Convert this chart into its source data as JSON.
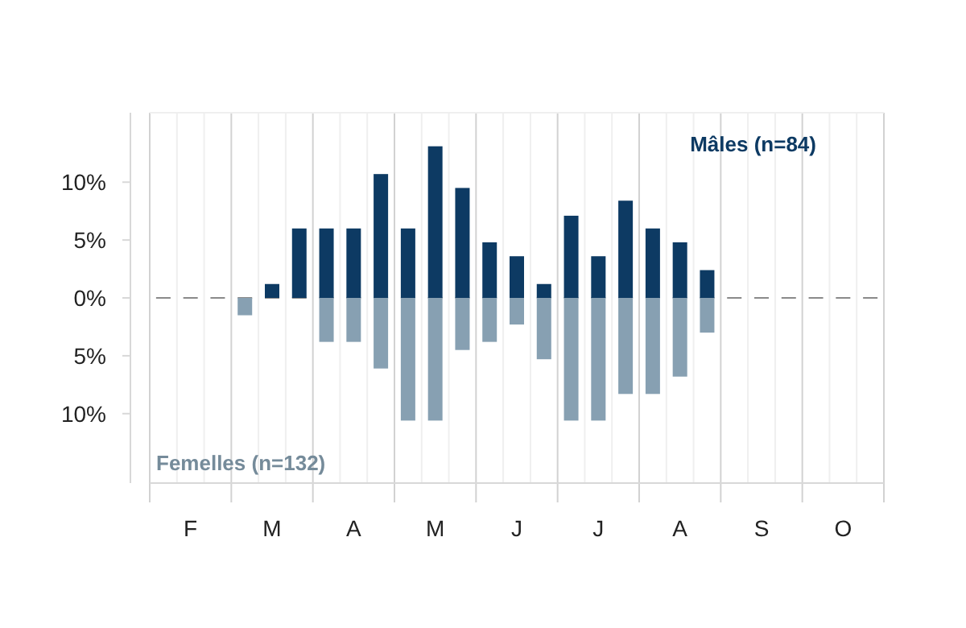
{
  "chart_data": {
    "type": "bar",
    "categories": [
      null,
      "F",
      null,
      null,
      "M",
      null,
      null,
      "A",
      null,
      null,
      "M",
      null,
      null,
      "J",
      null,
      null,
      "J",
      null,
      null,
      "A",
      null,
      null,
      "S",
      null,
      null,
      "O",
      null
    ],
    "series": [
      {
        "name": "Mâles (n=84)",
        "color": "#0d3a63",
        "values": [
          0,
          0,
          0,
          null,
          1.2,
          6.0,
          6.0,
          6.0,
          10.7,
          6.0,
          13.1,
          9.5,
          4.8,
          3.6,
          1.2,
          7.1,
          3.6,
          8.4,
          6.0,
          4.8,
          2.4,
          0,
          0,
          0,
          0,
          0,
          0
        ]
      },
      {
        "name": "Femelles (n=132)",
        "color": "#87a0b2",
        "values": [
          0,
          0,
          0,
          -1.5,
          null,
          null,
          -3.8,
          -3.8,
          -6.1,
          -10.6,
          -10.6,
          -4.5,
          -3.8,
          -2.3,
          -5.3,
          -10.6,
          -10.6,
          -8.3,
          -8.3,
          -6.8,
          -3.0,
          0,
          0,
          0,
          0,
          0,
          0
        ]
      }
    ],
    "ylim": [
      -16,
      16
    ],
    "yticks": [
      {
        "value": -10,
        "label": "10%"
      },
      {
        "value": -5,
        "label": "5%"
      },
      {
        "value": 0,
        "label": "0%"
      },
      {
        "value": 5,
        "label": "5%"
      },
      {
        "value": 10,
        "label": "10%"
      }
    ],
    "stacked": true,
    "ref_lines": [
      {
        "axis": "y",
        "value": 0,
        "color": "#8a8a8a",
        "line_style": "dashed"
      }
    ],
    "grid": "x"
  }
}
